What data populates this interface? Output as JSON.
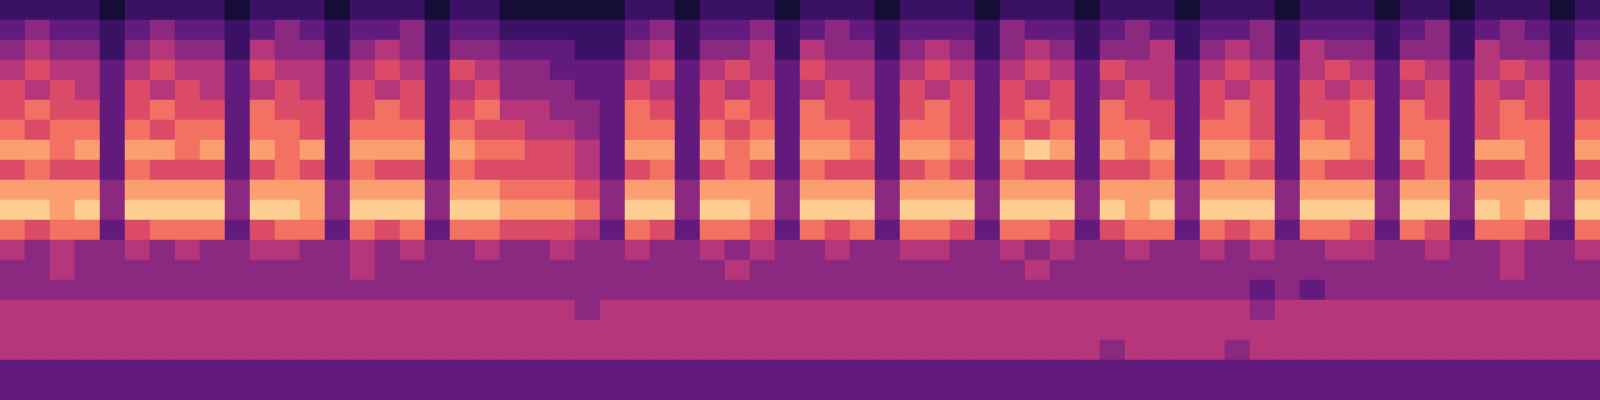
{
  "chart_data": {
    "type": "heatmap",
    "tick_labels": false,
    "grid": false,
    "color_range": [
      0,
      10
    ],
    "cells": [
      [
        2,
        2,
        2,
        2,
        1,
        2,
        2,
        2,
        2,
        1,
        2,
        2,
        2,
        1,
        2,
        2,
        2,
        1,
        2,
        2,
        1,
        1,
        1,
        1,
        1,
        2,
        2,
        1,
        2,
        2,
        2,
        1,
        2,
        2,
        2,
        1,
        2,
        2,
        2,
        1,
        2,
        2,
        2,
        1,
        2,
        2,
        2,
        1,
        2,
        2,
        2,
        1,
        2,
        2,
        2,
        1,
        2,
        2,
        1,
        2,
        2,
        2,
        1,
        2
      ],
      [
        3,
        4,
        3,
        3,
        2,
        3,
        4,
        3,
        3,
        2,
        3,
        4,
        3,
        2,
        3,
        3,
        4,
        2,
        3,
        3,
        2,
        2,
        2,
        2,
        2,
        3,
        4,
        2,
        3,
        3,
        4,
        2,
        3,
        4,
        3,
        2,
        3,
        3,
        3,
        2,
        4,
        3,
        3,
        2,
        3,
        4,
        3,
        2,
        3,
        3,
        4,
        2,
        3,
        3,
        3,
        2,
        3,
        4,
        2,
        3,
        4,
        3,
        2,
        3
      ],
      [
        4,
        5,
        4,
        4,
        2,
        4,
        5,
        4,
        4,
        2,
        5,
        4,
        4,
        2,
        4,
        5,
        4,
        2,
        4,
        4,
        3,
        3,
        3,
        2,
        2,
        4,
        5,
        2,
        4,
        4,
        5,
        2,
        5,
        4,
        4,
        2,
        4,
        5,
        4,
        2,
        4,
        5,
        4,
        2,
        4,
        4,
        5,
        2,
        4,
        5,
        4,
        2,
        5,
        4,
        4,
        2,
        4,
        4,
        2,
        5,
        4,
        4,
        2,
        4
      ],
      [
        5,
        6,
        5,
        5,
        3,
        5,
        6,
        5,
        5,
        3,
        6,
        5,
        5,
        3,
        5,
        6,
        5,
        3,
        6,
        5,
        4,
        4,
        3,
        3,
        3,
        5,
        6,
        3,
        5,
        6,
        5,
        3,
        6,
        5,
        5,
        3,
        5,
        6,
        5,
        3,
        5,
        6,
        5,
        3,
        6,
        5,
        5,
        3,
        5,
        6,
        5,
        3,
        5,
        6,
        5,
        3,
        6,
        5,
        3,
        5,
        6,
        5,
        3,
        5
      ],
      [
        6,
        5,
        6,
        5,
        3,
        6,
        5,
        6,
        5,
        3,
        5,
        6,
        5,
        3,
        6,
        5,
        6,
        3,
        5,
        6,
        4,
        4,
        4,
        3,
        3,
        6,
        5,
        3,
        6,
        5,
        6,
        3,
        5,
        6,
        5,
        3,
        6,
        5,
        6,
        3,
        6,
        5,
        6,
        3,
        5,
        6,
        5,
        3,
        6,
        5,
        6,
        3,
        6,
        5,
        6,
        3,
        5,
        6,
        3,
        6,
        5,
        6,
        3,
        6
      ],
      [
        6,
        7,
        6,
        6,
        3,
        6,
        7,
        6,
        6,
        3,
        7,
        6,
        6,
        3,
        6,
        7,
        6,
        3,
        6,
        7,
        5,
        5,
        4,
        4,
        3,
        7,
        6,
        3,
        6,
        7,
        6,
        3,
        7,
        6,
        6,
        3,
        6,
        7,
        6,
        3,
        6,
        7,
        6,
        3,
        7,
        6,
        6,
        3,
        6,
        7,
        6,
        3,
        6,
        6,
        7,
        3,
        7,
        6,
        3,
        6,
        7,
        6,
        3,
        6
      ],
      [
        7,
        6,
        7,
        7,
        3,
        7,
        6,
        7,
        7,
        3,
        7,
        7,
        6,
        3,
        7,
        7,
        7,
        3,
        7,
        6,
        6,
        5,
        5,
        4,
        3,
        7,
        7,
        3,
        7,
        6,
        7,
        3,
        7,
        7,
        6,
        3,
        7,
        7,
        6,
        3,
        7,
        6,
        7,
        3,
        7,
        7,
        6,
        3,
        7,
        7,
        6,
        3,
        7,
        6,
        7,
        3,
        7,
        7,
        3,
        6,
        7,
        7,
        3,
        7
      ],
      [
        8,
        8,
        7,
        8,
        3,
        8,
        8,
        7,
        8,
        3,
        8,
        7,
        8,
        3,
        8,
        8,
        8,
        3,
        8,
        7,
        7,
        6,
        6,
        5,
        3,
        8,
        8,
        3,
        8,
        7,
        8,
        3,
        8,
        8,
        7,
        3,
        8,
        8,
        7,
        3,
        8,
        9,
        8,
        3,
        8,
        7,
        8,
        3,
        8,
        8,
        7,
        3,
        8,
        8,
        7,
        3,
        8,
        7,
        3,
        8,
        8,
        7,
        3,
        8
      ],
      [
        6,
        7,
        6,
        6,
        3,
        7,
        6,
        6,
        6,
        3,
        6,
        7,
        6,
        3,
        7,
        6,
        6,
        3,
        7,
        6,
        6,
        6,
        6,
        5,
        3,
        6,
        7,
        3,
        6,
        7,
        6,
        3,
        7,
        6,
        6,
        3,
        6,
        7,
        6,
        3,
        7,
        6,
        6,
        3,
        6,
        6,
        7,
        3,
        6,
        7,
        6,
        3,
        7,
        6,
        6,
        3,
        6,
        7,
        3,
        6,
        6,
        7,
        3,
        6
      ],
      [
        8,
        8,
        8,
        8,
        4,
        8,
        8,
        8,
        8,
        4,
        8,
        8,
        8,
        4,
        8,
        8,
        8,
        4,
        8,
        8,
        7,
        7,
        7,
        6,
        4,
        8,
        8,
        4,
        8,
        8,
        8,
        4,
        8,
        8,
        8,
        4,
        8,
        8,
        8,
        4,
        8,
        8,
        8,
        4,
        8,
        8,
        8,
        4,
        8,
        8,
        8,
        4,
        8,
        8,
        8,
        4,
        8,
        8,
        4,
        8,
        8,
        8,
        4,
        8
      ],
      [
        9,
        9,
        8,
        9,
        4,
        9,
        9,
        9,
        9,
        4,
        9,
        9,
        8,
        4,
        9,
        9,
        9,
        4,
        9,
        9,
        8,
        8,
        8,
        7,
        4,
        9,
        9,
        4,
        9,
        9,
        8,
        4,
        9,
        9,
        9,
        4,
        9,
        9,
        9,
        4,
        9,
        9,
        9,
        4,
        9,
        8,
        9,
        4,
        9,
        9,
        9,
        4,
        9,
        9,
        9,
        4,
        9,
        9,
        4,
        9,
        8,
        9,
        4,
        9
      ],
      [
        7,
        6,
        7,
        7,
        3,
        6,
        7,
        7,
        7,
        3,
        6,
        7,
        7,
        3,
        7,
        6,
        7,
        3,
        7,
        7,
        6,
        6,
        6,
        5,
        3,
        7,
        6,
        3,
        7,
        7,
        6,
        3,
        7,
        6,
        7,
        3,
        7,
        7,
        6,
        3,
        7,
        7,
        6,
        3,
        6,
        7,
        7,
        3,
        7,
        6,
        7,
        3,
        7,
        7,
        6,
        3,
        7,
        6,
        3,
        7,
        7,
        6,
        3,
        7
      ],
      [
        5,
        4,
        5,
        4,
        4,
        5,
        4,
        5,
        4,
        4,
        5,
        5,
        4,
        4,
        5,
        4,
        5,
        4,
        4,
        5,
        4,
        4,
        5,
        4,
        4,
        5,
        4,
        4,
        5,
        4,
        5,
        4,
        4,
        5,
        4,
        4,
        5,
        5,
        4,
        4,
        5,
        4,
        5,
        4,
        4,
        5,
        4,
        4,
        5,
        4,
        5,
        4,
        4,
        5,
        5,
        4,
        4,
        5,
        4,
        4,
        5,
        4,
        4,
        5
      ],
      [
        4,
        4,
        5,
        4,
        4,
        4,
        4,
        4,
        4,
        4,
        4,
        4,
        4,
        4,
        5,
        4,
        4,
        4,
        4,
        4,
        4,
        4,
        4,
        4,
        4,
        4,
        4,
        4,
        4,
        5,
        4,
        4,
        4,
        4,
        4,
        4,
        4,
        4,
        4,
        4,
        4,
        5,
        4,
        4,
        4,
        4,
        4,
        4,
        4,
        4,
        4,
        4,
        4,
        4,
        4,
        4,
        4,
        4,
        4,
        4,
        5,
        4,
        4,
        4
      ],
      [
        4,
        4,
        4,
        4,
        4,
        4,
        4,
        4,
        4,
        4,
        4,
        4,
        4,
        4,
        4,
        4,
        4,
        4,
        4,
        4,
        4,
        4,
        4,
        4,
        4,
        4,
        4,
        4,
        4,
        4,
        4,
        4,
        4,
        4,
        4,
        4,
        4,
        4,
        4,
        4,
        4,
        4,
        4,
        4,
        4,
        4,
        4,
        4,
        4,
        4,
        3,
        4,
        3,
        4,
        4,
        4,
        4,
        4,
        4,
        4,
        4,
        4,
        4,
        4
      ],
      [
        5,
        5,
        5,
        5,
        5,
        5,
        5,
        5,
        5,
        5,
        5,
        5,
        5,
        5,
        5,
        5,
        5,
        5,
        5,
        5,
        5,
        5,
        5,
        4,
        5,
        5,
        5,
        5,
        5,
        5,
        5,
        5,
        5,
        5,
        5,
        5,
        5,
        5,
        5,
        5,
        5,
        5,
        5,
        5,
        5,
        5,
        5,
        5,
        5,
        5,
        4,
        5,
        5,
        5,
        5,
        5,
        5,
        5,
        5,
        5,
        5,
        5,
        5,
        5
      ],
      [
        5,
        5,
        5,
        5,
        5,
        5,
        5,
        5,
        5,
        5,
        5,
        5,
        5,
        5,
        5,
        5,
        5,
        5,
        5,
        5,
        5,
        5,
        5,
        5,
        5,
        5,
        5,
        5,
        5,
        5,
        5,
        5,
        5,
        5,
        5,
        5,
        5,
        5,
        5,
        5,
        5,
        5,
        5,
        5,
        5,
        5,
        5,
        5,
        5,
        5,
        5,
        5,
        5,
        5,
        5,
        5,
        5,
        5,
        5,
        5,
        5,
        5,
        5,
        5
      ],
      [
        5,
        5,
        5,
        5,
        5,
        5,
        5,
        5,
        5,
        5,
        5,
        5,
        5,
        5,
        5,
        5,
        5,
        5,
        5,
        5,
        5,
        5,
        5,
        5,
        5,
        5,
        5,
        5,
        5,
        5,
        5,
        5,
        5,
        5,
        5,
        5,
        5,
        5,
        5,
        5,
        5,
        5,
        5,
        5,
        4,
        5,
        5,
        5,
        5,
        4,
        5,
        5,
        5,
        5,
        5,
        5,
        5,
        5,
        5,
        5,
        5,
        5,
        5,
        5
      ],
      [
        3,
        3,
        3,
        3,
        3,
        3,
        3,
        3,
        3,
        3,
        3,
        3,
        3,
        3,
        3,
        3,
        3,
        3,
        3,
        3,
        3,
        3,
        3,
        3,
        3,
        3,
        3,
        3,
        3,
        3,
        3,
        3,
        3,
        3,
        3,
        3,
        3,
        3,
        3,
        3,
        3,
        3,
        3,
        3,
        3,
        3,
        3,
        3,
        3,
        3,
        3,
        3,
        3,
        3,
        3,
        3,
        3,
        3,
        3,
        3,
        3,
        3,
        3,
        3
      ],
      [
        3,
        3,
        3,
        3,
        3,
        3,
        3,
        3,
        3,
        3,
        3,
        3,
        3,
        3,
        3,
        3,
        3,
        3,
        3,
        3,
        3,
        3,
        3,
        3,
        3,
        3,
        3,
        3,
        3,
        3,
        3,
        3,
        3,
        3,
        3,
        3,
        3,
        3,
        3,
        3,
        3,
        3,
        3,
        3,
        3,
        3,
        3,
        3,
        3,
        3,
        3,
        3,
        3,
        3,
        3,
        3,
        3,
        3,
        3,
        3,
        3,
        3,
        3,
        3
      ]
    ]
  }
}
